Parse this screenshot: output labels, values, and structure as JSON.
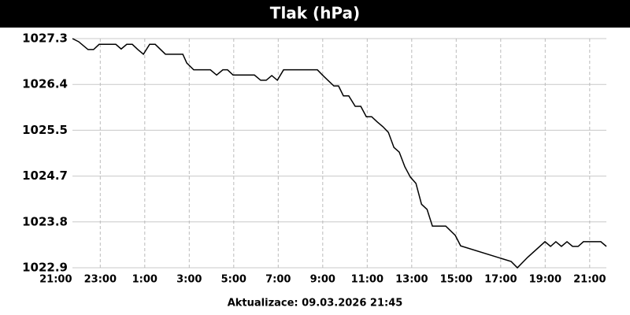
{
  "chart_data": {
    "type": "line",
    "title": "Tlak (hPa)",
    "footer": "Aktualizace: 09.03.2026 21:45",
    "x": [
      0.75,
      1.03,
      1.45,
      1.7,
      1.95,
      2.7,
      2.94,
      3.19,
      3.44,
      3.69,
      3.94,
      4.22,
      4.47,
      4.93,
      5.71,
      5.89,
      6.2,
      6.95,
      7.23,
      7.51,
      7.72,
      7.97,
      8.93,
      9.21,
      9.46,
      9.71,
      9.96,
      10.24,
      11.76,
      12.01,
      12.5,
      12.71,
      12.93,
      13.17,
      13.46,
      13.71,
      13.96,
      14.2,
      14.45,
      14.7,
      14.95,
      15.2,
      15.44,
      15.69,
      15.94,
      16.19,
      16.44,
      16.69,
      16.93,
      17.53,
      17.96,
      18.2,
      20.47,
      20.75,
      21.21,
      21.99,
      22.24,
      22.48,
      22.73,
      22.98,
      23.23,
      23.48,
      23.72,
      24.5,
      24.75
    ],
    "series": [
      {
        "color": "#000000",
        "values": [
          1027.3,
          1027.24,
          1027.09,
          1027.09,
          1027.19,
          1027.19,
          1027.1,
          1027.19,
          1027.19,
          1027.09,
          1027.0,
          1027.19,
          1027.19,
          1027.0,
          1027.0,
          1026.83,
          1026.7,
          1026.7,
          1026.6,
          1026.7,
          1026.7,
          1026.6,
          1026.6,
          1026.5,
          1026.5,
          1026.59,
          1026.5,
          1026.7,
          1026.7,
          1026.59,
          1026.39,
          1026.39,
          1026.2,
          1026.2,
          1026.0,
          1026.0,
          1025.8,
          1025.8,
          1025.7,
          1025.61,
          1025.5,
          1025.21,
          1025.12,
          1024.84,
          1024.64,
          1024.52,
          1024.12,
          1024.02,
          1023.7,
          1023.7,
          1023.52,
          1023.32,
          1023.02,
          1022.9,
          1023.1,
          1023.4,
          1023.31,
          1023.4,
          1023.31,
          1023.4,
          1023.31,
          1023.31,
          1023.4,
          1023.4,
          1023.31
        ]
      }
    ],
    "xlim": [
      0.75,
      24.75
    ],
    "xticks": [
      {
        "value": 0,
        "label": "21:00"
      },
      {
        "value": 2,
        "label": "23:00"
      },
      {
        "value": 4,
        "label": "1:00"
      },
      {
        "value": 6,
        "label": "3:00"
      },
      {
        "value": 8,
        "label": "5:00"
      },
      {
        "value": 10,
        "label": "7:00"
      },
      {
        "value": 12,
        "label": "9:00"
      },
      {
        "value": 14,
        "label": "11:00"
      },
      {
        "value": 16,
        "label": "13:00"
      },
      {
        "value": 18,
        "label": "15:00"
      },
      {
        "value": 20,
        "label": "17:00"
      },
      {
        "value": 22,
        "label": "19:00"
      },
      {
        "value": 24,
        "label": "21:00"
      }
    ],
    "ylim": [
      1022.9,
      1027.3
    ],
    "yticks": [
      1022.9,
      {
        "value": 1023.78,
        "label": "1023.8"
      },
      {
        "value": 1024.66,
        "label": "1024.7"
      },
      {
        "value": 1025.54,
        "label": "1025.5"
      },
      {
        "value": 1026.42,
        "label": "1026.4"
      },
      1027.3
    ],
    "grid": true
  }
}
